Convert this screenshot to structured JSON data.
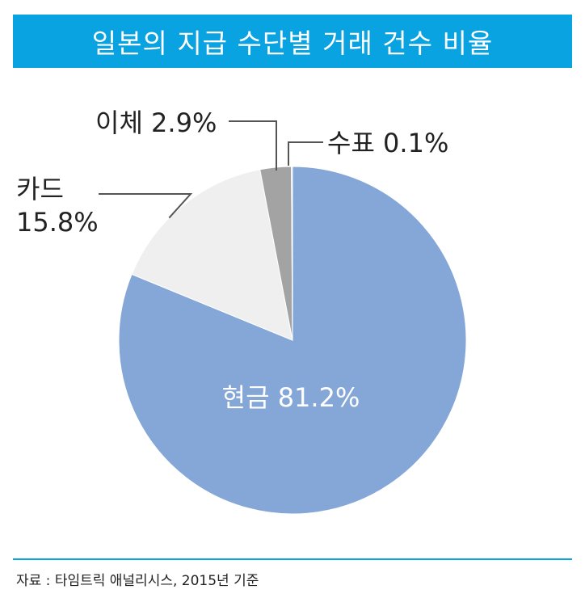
{
  "title": "일본의 지급 수단별 거래 건수 비율",
  "source": "자료 : 타임트릭 애널리시스, 2015년 기준",
  "colors": {
    "title_bg": "#0aa3e2",
    "leader": "#555555",
    "text": "#222222"
  },
  "chart_data": {
    "type": "pie",
    "slices": [
      {
        "name": "현금",
        "value": 81.2,
        "label": "현금 81.2%",
        "color": "#84a7d8"
      },
      {
        "name": "카드",
        "value": 15.8,
        "label_lines": [
          "카드",
          "15.8%"
        ],
        "color": "#efefef"
      },
      {
        "name": "이체",
        "value": 2.9,
        "label": "이체 2.9%",
        "color": "#a3a3a3"
      },
      {
        "name": "수표",
        "value": 0.1,
        "label": "수표 0.1%",
        "color": "#d0d0d0"
      }
    ]
  }
}
